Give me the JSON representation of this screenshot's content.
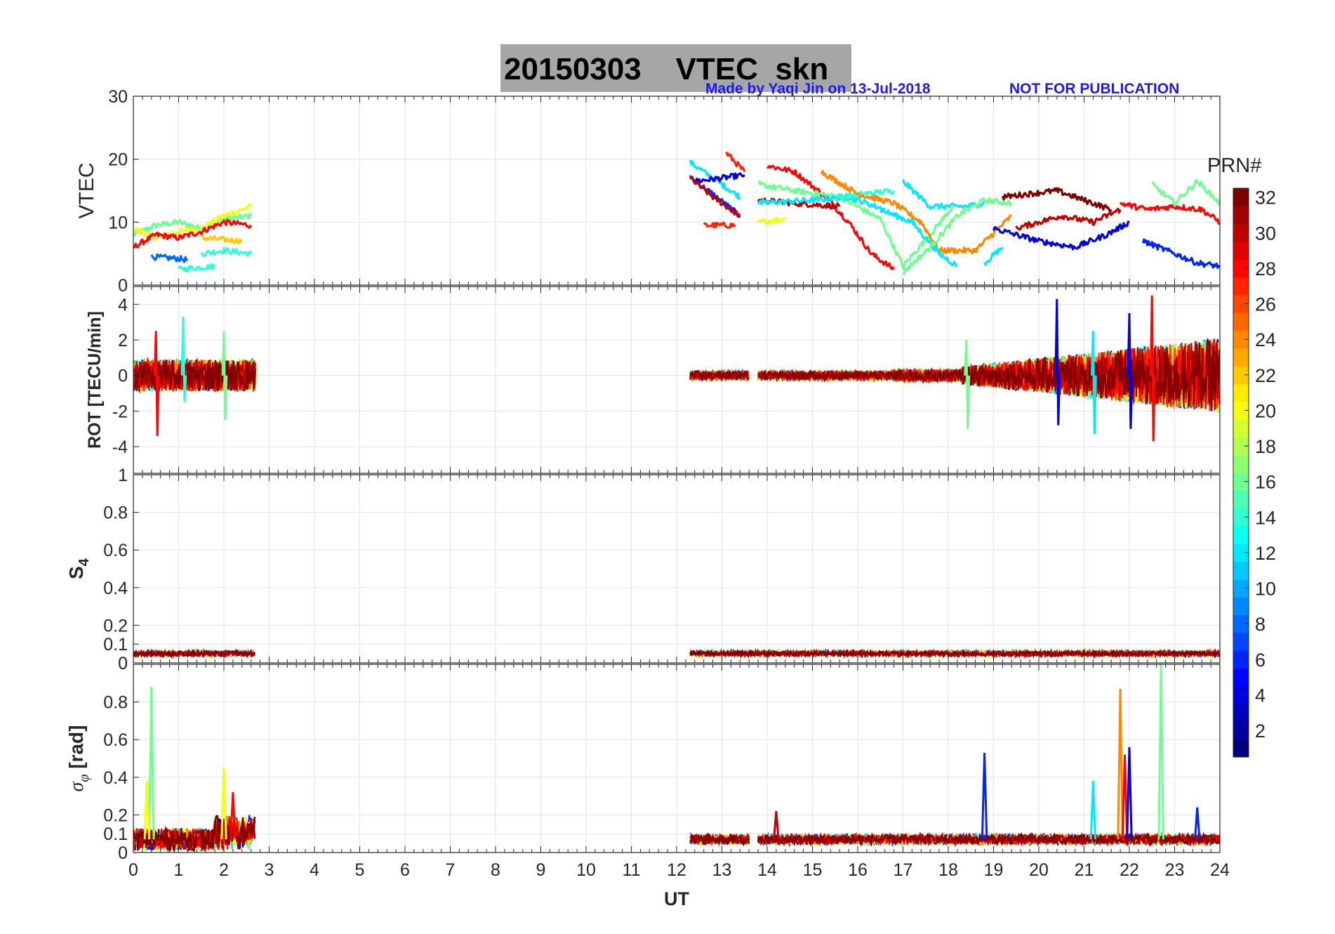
{
  "figure": {
    "title": "20150303    VTEC  skn",
    "credit_left": "Made by Yaqi Jin on 13-Jul-2018",
    "credit_right": "NOT FOR PUBLICATION",
    "colors": {
      "title_box": "#a6a6a6",
      "credit": "#1c1cf0",
      "grid": "#e3e3e3"
    }
  },
  "chart_data": [
    {
      "id": "vtec",
      "type": "line",
      "ylabel": "VTEC",
      "ylim": [
        0,
        30
      ],
      "yticks": [
        0,
        10,
        20,
        30
      ],
      "xlim": [
        0,
        24
      ],
      "grid": true,
      "description_series": "VTEC per satellite PRN, colored by PRN#",
      "series": [
        {
          "prn": 16,
          "segments": [
            [
              [
                0,
                8
              ],
              [
                0.5,
                9.5
              ],
              [
                1,
                10
              ],
              [
                1.5,
                9
              ],
              [
                2,
                10.5
              ],
              [
                2.6,
                11
              ]
            ]
          ]
        },
        {
          "prn": 20,
          "segments": [
            [
              [
                0,
                9
              ],
              [
                0.5,
                7.5
              ],
              [
                1,
                8.5
              ],
              [
                1.5,
                9
              ],
              [
                2,
                11
              ],
              [
                2.6,
                12.5
              ]
            ]
          ]
        },
        {
          "prn": 28,
          "segments": [
            [
              [
                0,
                6
              ],
              [
                0.5,
                8
              ],
              [
                1,
                7.5
              ],
              [
                1.5,
                8.5
              ],
              [
                2,
                10
              ],
              [
                2.6,
                9.5
              ]
            ]
          ]
        },
        {
          "prn": 8,
          "segments": [
            [
              [
                0.4,
                4.5
              ],
              [
                1,
                4.2
              ],
              [
                1.2,
                4
              ]
            ]
          ]
        },
        {
          "prn": 14,
          "segments": [
            [
              [
                1,
                2.5
              ],
              [
                1.8,
                3
              ]
            ],
            [
              [
                1.5,
                5
              ],
              [
                2,
                5.5
              ],
              [
                2.6,
                5
              ]
            ]
          ]
        },
        {
          "prn": 22,
          "segments": [
            [
              [
                1.5,
                7.5
              ],
              [
                2.4,
                7
              ]
            ]
          ]
        },
        {
          "prn": 12,
          "segments": [
            [
              [
                12.3,
                19.5
              ],
              [
                12.8,
                17
              ],
              [
                13.4,
                14
              ]
            ],
            [
              [
                18.8,
                3.5
              ],
              [
                19.2,
                6
              ]
            ]
          ]
        },
        {
          "prn": 6,
          "segments": [
            [
              [
                12.3,
                17
              ],
              [
                12.7,
                15
              ],
              [
                13.4,
                11
              ]
            ]
          ]
        },
        {
          "prn": 4,
          "segments": [
            [
              [
                12.4,
                16.5
              ],
              [
                13.0,
                17
              ],
              [
                13.5,
                17.5
              ]
            ]
          ]
        },
        {
          "prn": 30,
          "segments": [
            [
              [
                12.3,
                17
              ],
              [
                12.8,
                14
              ],
              [
                13.4,
                11
              ]
            ]
          ]
        },
        {
          "prn": 27,
          "segments": [
            [
              [
                12.6,
                9.5
              ],
              [
                13.3,
                9.5
              ]
            ],
            [
              [
                13.1,
                21
              ],
              [
                13.5,
                18
              ]
            ]
          ]
        },
        {
          "prn": 20,
          "segments": [
            [
              [
                13.8,
                10
              ],
              [
                14.4,
                10.5
              ]
            ]
          ]
        },
        {
          "prn": 28,
          "segments": [
            [
              [
                14.0,
                19
              ],
              [
                14.6,
                18
              ],
              [
                15.3,
                14
              ],
              [
                15.8,
                10
              ],
              [
                16.3,
                5
              ],
              [
                16.8,
                2.5
              ]
            ]
          ]
        },
        {
          "prn": 30,
          "segments": [
            [
              [
                13.8,
                13.5
              ],
              [
                14.6,
                13
              ],
              [
                15.6,
                12.5
              ]
            ]
          ]
        },
        {
          "prn": 16,
          "segments": [
            [
              [
                13.8,
                16
              ],
              [
                14.6,
                15
              ],
              [
                15.6,
                14
              ],
              [
                16.5,
                10.5
              ],
              [
                17.0,
                3
              ],
              [
                17.6,
                8
              ],
              [
                18.1,
                12.5
              ]
            ]
          ]
        },
        {
          "prn": 12,
          "segments": [
            [
              [
                13.8,
                13
              ],
              [
                15.0,
                13.5
              ],
              [
                15.8,
                14
              ],
              [
                16.6,
                12
              ]
            ]
          ]
        },
        {
          "prn": 14,
          "segments": [
            [
              [
                15.5,
                14
              ],
              [
                16.8,
                15
              ]
            ]
          ]
        },
        {
          "prn": 24,
          "segments": [
            [
              [
                15.2,
                18
              ],
              [
                16.0,
                14.5
              ],
              [
                16.8,
                13
              ],
              [
                17.4,
                10
              ],
              [
                17.8,
                5.5
              ],
              [
                18.6,
                5.5
              ],
              [
                19.4,
                11
              ]
            ]
          ]
        },
        {
          "prn": 12,
          "segments": [
            [
              [
                17.0,
                16.5
              ],
              [
                17.6,
                12.5
              ],
              [
                18.4,
                12.5
              ],
              [
                18.8,
                13
              ]
            ]
          ]
        },
        {
          "prn": 12,
          "segments": [
            [
              [
                16.5,
                12
              ],
              [
                17.2,
                10
              ],
              [
                17.8,
                5
              ],
              [
                18.2,
                3
              ]
            ]
          ]
        },
        {
          "prn": 16,
          "segments": [
            [
              [
                17.0,
                2
              ],
              [
                17.6,
                6
              ],
              [
                18.2,
                11
              ],
              [
                18.8,
                13.5
              ],
              [
                19.4,
                13
              ]
            ]
          ]
        },
        {
          "prn": 32,
          "segments": [
            [
              [
                19.2,
                14
              ],
              [
                19.8,
                14.5
              ],
              [
                20.4,
                15
              ],
              [
                21.0,
                13.5
              ],
              [
                21.6,
                12
              ]
            ]
          ]
        },
        {
          "prn": 30,
          "segments": [
            [
              [
                19.5,
                9
              ],
              [
                20.0,
                10
              ],
              [
                20.5,
                11
              ],
              [
                21.2,
                10
              ],
              [
                21.8,
                12
              ]
            ]
          ]
        },
        {
          "prn": 4,
          "segments": [
            [
              [
                19.0,
                9
              ],
              [
                20.0,
                7
              ],
              [
                20.8,
                6
              ],
              [
                21.5,
                8
              ],
              [
                22.0,
                10
              ]
            ]
          ]
        },
        {
          "prn": 28,
          "segments": [
            [
              [
                21.8,
                13
              ],
              [
                22.4,
                12
              ],
              [
                23.0,
                12.5
              ],
              [
                23.6,
                12
              ],
              [
                24,
                10
              ]
            ]
          ]
        },
        {
          "prn": 6,
          "segments": [
            [
              [
                22.3,
                7
              ],
              [
                23.0,
                5
              ],
              [
                23.5,
                3.5
              ],
              [
                24,
                3
              ]
            ]
          ]
        },
        {
          "prn": 16,
          "segments": [
            [
              [
                22.5,
                16
              ],
              [
                23.0,
                13
              ],
              [
                23.5,
                16.5
              ],
              [
                24,
                13
              ]
            ]
          ]
        }
      ]
    },
    {
      "id": "rot",
      "type": "line",
      "ylabel": "ROT [TECU/min]",
      "ylim": [
        -5.5,
        5
      ],
      "yticks": [
        -4,
        -2,
        0,
        2,
        4
      ],
      "xlim": [
        0,
        24
      ],
      "grid": true,
      "spikes": [
        {
          "x": 0.5,
          "ymin": -3.4,
          "ymax": 2.5,
          "prn": 28
        },
        {
          "x": 1.1,
          "ymin": -1.5,
          "ymax": 3.3,
          "prn": 14
        },
        {
          "x": 2.0,
          "ymin": -2.5,
          "ymax": 2.5,
          "prn": 16
        },
        {
          "x": 18.4,
          "ymin": -3.0,
          "ymax": 2.0,
          "prn": 16
        },
        {
          "x": 20.4,
          "ymin": -2.8,
          "ymax": 4.3,
          "prn": 4
        },
        {
          "x": 21.2,
          "ymin": -3.3,
          "ymax": 2.5,
          "prn": 12
        },
        {
          "x": 22.0,
          "ymin": -3.0,
          "ymax": 3.5,
          "prn": 4
        },
        {
          "x": 22.5,
          "ymin": -3.7,
          "ymax": 4.5,
          "prn": 28
        }
      ],
      "active_ranges": [
        [
          0,
          2.7
        ],
        [
          12.3,
          13.6
        ],
        [
          13.8,
          24
        ]
      ]
    },
    {
      "id": "s4",
      "type": "line",
      "ylabel": "S4",
      "ylabel_main": "S",
      "ylabel_sub": "4",
      "ylim": [
        0,
        1
      ],
      "yticks": [
        0,
        0.1,
        0.2,
        0.4,
        0.6,
        0.8,
        1
      ],
      "ytick_labels": [
        "0",
        "0.1",
        "0.2",
        "0.4",
        "0.6",
        "0.8",
        "1"
      ],
      "xlim": [
        0,
        24
      ],
      "grid": true,
      "baseline_level": 0.05,
      "active_ranges": [
        [
          0,
          2.7
        ],
        [
          12.3,
          24
        ]
      ]
    },
    {
      "id": "sigma_phi",
      "type": "line",
      "ylabel": "σφ [rad]",
      "ylabel_main": "σ",
      "ylabel_sub": "φ",
      "ylabel_unit": "[rad]",
      "ylim": [
        0,
        1
      ],
      "yticks": [
        0,
        0.1,
        0.2,
        0.4,
        0.6,
        0.8,
        1
      ],
      "ytick_labels": [
        "0",
        "0.1",
        "0.2",
        "0.4",
        "0.6",
        "0.8"
      ],
      "xlim": [
        0,
        24
      ],
      "grid": true,
      "xlabel": "UT",
      "xticks": [
        "0",
        "1",
        "2",
        "3",
        "4",
        "5",
        "6",
        "7",
        "8",
        "9",
        "10",
        "11",
        "12",
        "13",
        "14",
        "15",
        "16",
        "17",
        "18",
        "19",
        "20",
        "21",
        "22",
        "23",
        "24"
      ],
      "spikes": [
        {
          "x": 0.4,
          "y": 0.88,
          "prn": 16
        },
        {
          "x": 0.3,
          "y": 0.38,
          "prn": 20
        },
        {
          "x": 2.0,
          "y": 0.45,
          "prn": 20
        },
        {
          "x": 2.2,
          "y": 0.32,
          "prn": 28
        },
        {
          "x": 18.8,
          "y": 0.53,
          "prn": 6
        },
        {
          "x": 21.2,
          "y": 0.38,
          "prn": 12
        },
        {
          "x": 21.8,
          "y": 0.87,
          "prn": 24
        },
        {
          "x": 21.9,
          "y": 0.52,
          "prn": 28
        },
        {
          "x": 22.0,
          "y": 0.56,
          "prn": 4
        },
        {
          "x": 22.7,
          "y": 1.0,
          "prn": 16
        },
        {
          "x": 14.2,
          "y": 0.22,
          "prn": 30
        },
        {
          "x": 23.5,
          "y": 0.24,
          "prn": 6
        }
      ],
      "baseline_level": 0.07,
      "active_ranges": [
        [
          0,
          2.7
        ],
        [
          12.3,
          13.6
        ],
        [
          13.8,
          24
        ]
      ]
    }
  ],
  "colorbar": {
    "label": "PRN#",
    "min": 1,
    "max": 32,
    "ticks": [
      "2",
      "4",
      "6",
      "8",
      "10",
      "12",
      "14",
      "16",
      "18",
      "20",
      "22",
      "24",
      "26",
      "28",
      "30",
      "32"
    ]
  }
}
